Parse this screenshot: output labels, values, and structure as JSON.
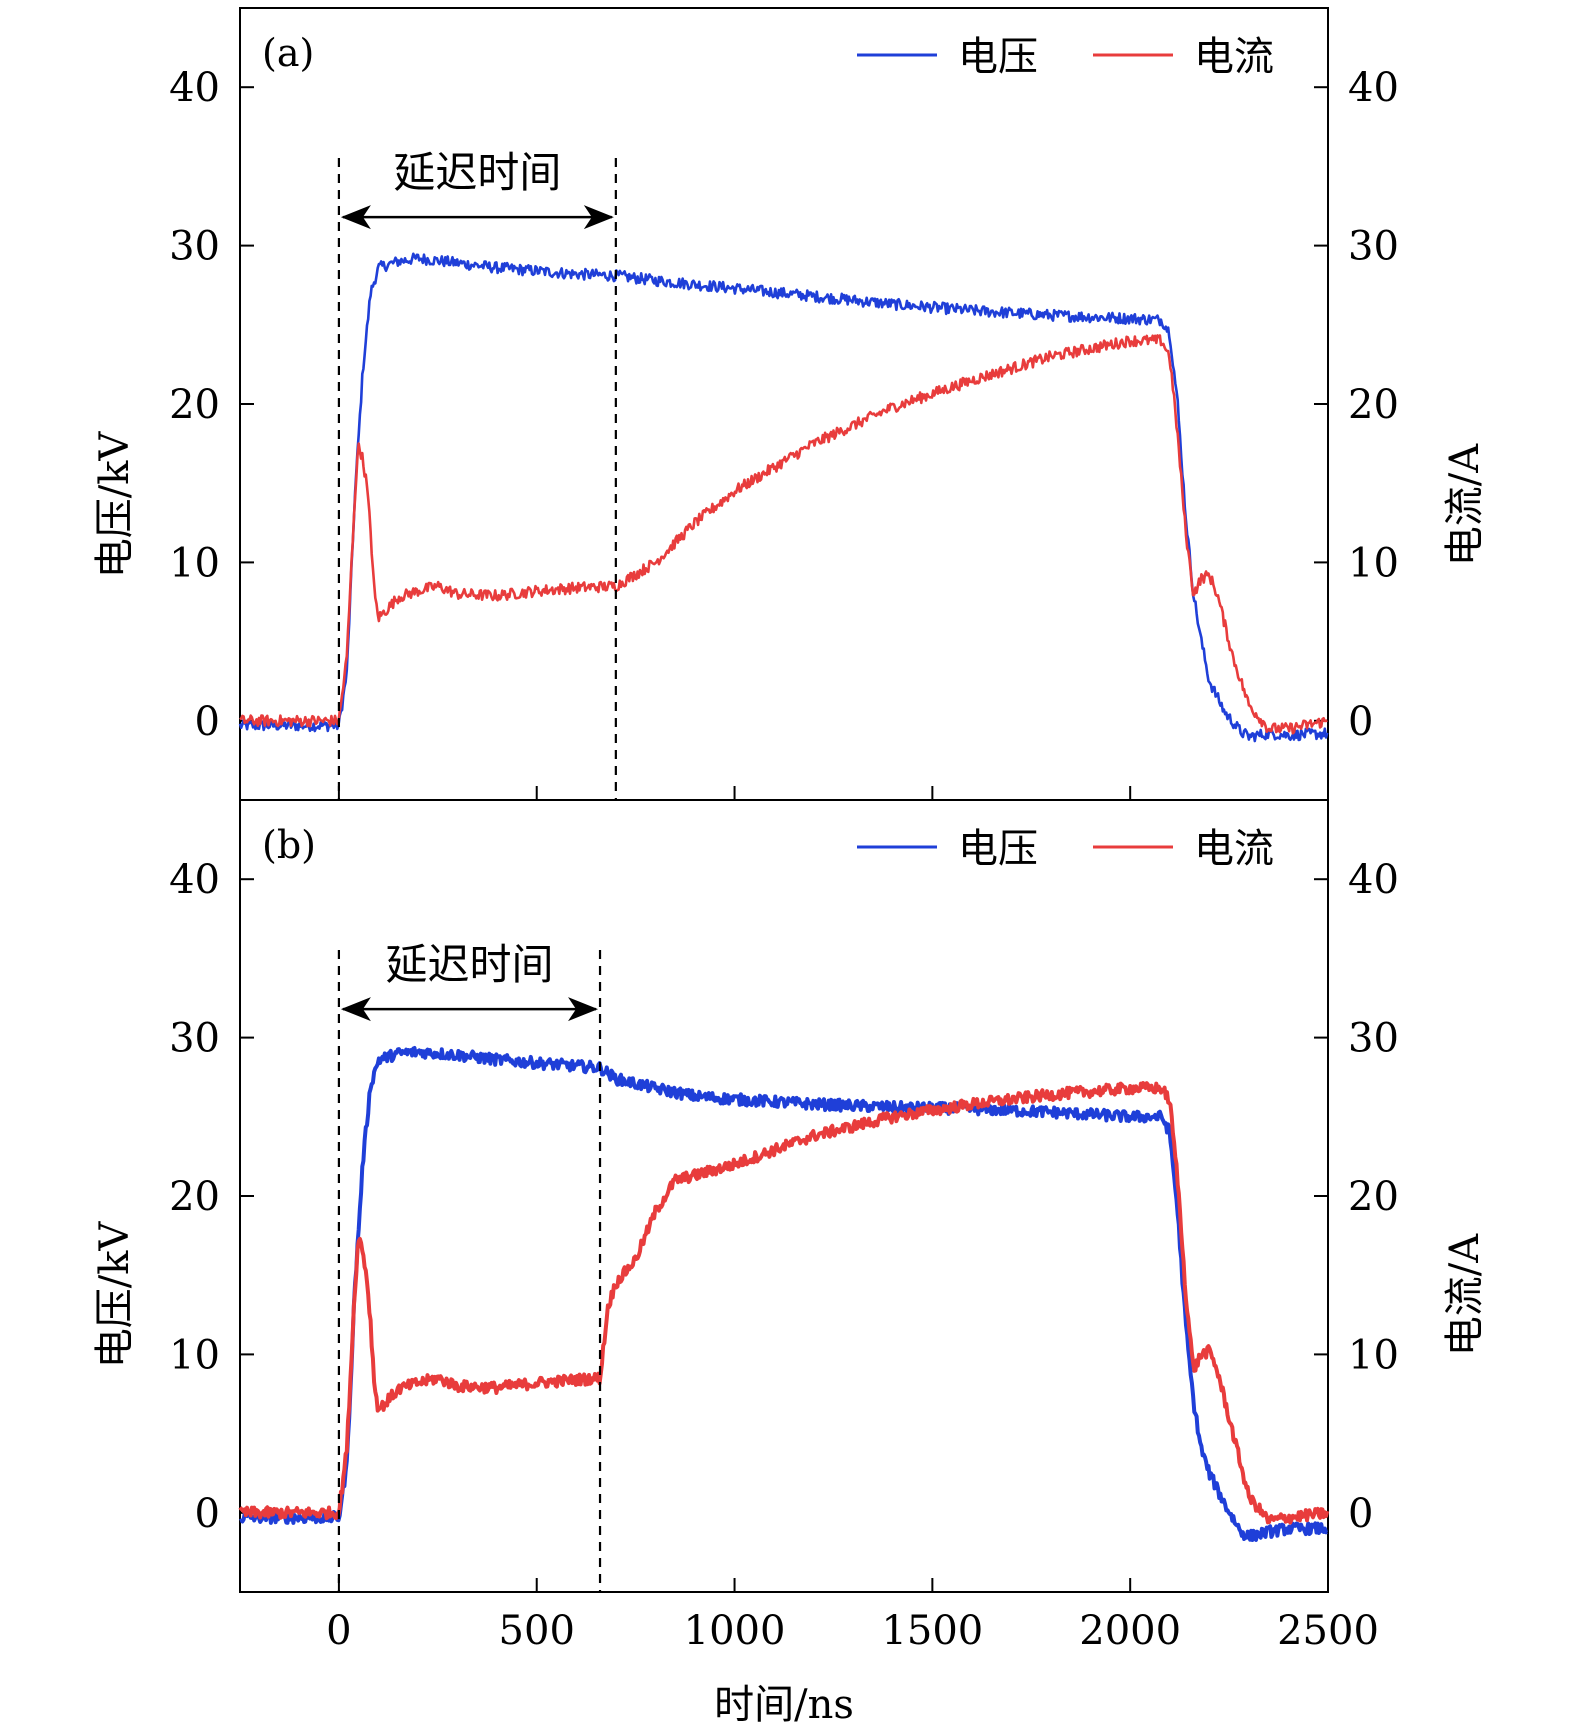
{
  "chart_data": [
    {
      "type": "line",
      "panel_label": "(a)",
      "xlabel": "时间/ns",
      "ylabel_left": "电压/kV",
      "ylabel_right": "电流/A",
      "xlim": [
        -250,
        2500
      ],
      "ylim": [
        -5,
        45
      ],
      "xticks": [
        0,
        500,
        1000,
        1500,
        2000,
        2500
      ],
      "yticks": [
        0,
        10,
        20,
        30,
        40
      ],
      "tick_labels_y": [
        "0",
        "10",
        "20",
        "30",
        "40"
      ],
      "legend_position": "top-right",
      "annotation": {
        "text": "延迟时间",
        "x_start": 0,
        "x_end": 700,
        "arrow_y": 31.8
      },
      "series": [
        {
          "name": "电压",
          "color": "#1f3fd8",
          "axis": "left",
          "x": [
            -250,
            0,
            20,
            40,
            60,
            80,
            100,
            150,
            200,
            300,
            400,
            500,
            600,
            700,
            800,
            1000,
            1200,
            1400,
            1600,
            1800,
            2000,
            2080,
            2100,
            2120,
            2140,
            2160,
            2180,
            2200,
            2240,
            2280,
            2300,
            2350,
            2400,
            2500
          ],
          "y": [
            -0.3,
            -0.3,
            3,
            14,
            22,
            27,
            28.6,
            29,
            29.2,
            28.9,
            28.6,
            28.4,
            28.2,
            28.1,
            27.8,
            27.3,
            26.8,
            26.3,
            25.9,
            25.6,
            25.4,
            25.3,
            24.5,
            20,
            13,
            8,
            5,
            2.5,
            0.5,
            -0.7,
            -1.0,
            -0.8,
            -0.9,
            -0.8
          ]
        },
        {
          "name": "电流",
          "color": "#e83c3c",
          "axis": "right",
          "x": [
            -250,
            0,
            20,
            40,
            50,
            60,
            70,
            80,
            90,
            100,
            120,
            150,
            200,
            250,
            300,
            400,
            500,
            600,
            700,
            800,
            900,
            1000,
            1200,
            1400,
            1600,
            1800,
            2000,
            2080,
            2100,
            2120,
            2140,
            2160,
            2180,
            2200,
            2220,
            2260,
            2300,
            2350,
            2400,
            2500
          ],
          "y": [
            0,
            0,
            4,
            14,
            17.5,
            16.5,
            15,
            12,
            8,
            6.5,
            7,
            7.8,
            8.2,
            8.5,
            8,
            7.9,
            8.2,
            8.4,
            8.5,
            10,
            12.5,
            14.5,
            17.5,
            19.8,
            21.5,
            23,
            24,
            24,
            23,
            18,
            12,
            8,
            9,
            9.2,
            8,
            4,
            1,
            -0.5,
            -0.5,
            0
          ]
        }
      ]
    },
    {
      "type": "line",
      "panel_label": "(b)",
      "xlabel": "时间/ns",
      "ylabel_left": "电压/kV",
      "ylabel_right": "电流/A",
      "xlim": [
        -250,
        2500
      ],
      "ylim": [
        -5,
        45
      ],
      "xticks": [
        0,
        500,
        1000,
        1500,
        2000,
        2500
      ],
      "xtick_labels": [
        "0",
        "500",
        "1000",
        "1500",
        "2000",
        "2500"
      ],
      "yticks": [
        0,
        10,
        20,
        30,
        40
      ],
      "tick_labels_y": [
        "0",
        "10",
        "20",
        "30",
        "40"
      ],
      "legend_position": "top-right",
      "annotation": {
        "text": "延迟时间",
        "x_start": 0,
        "x_end": 660,
        "arrow_y": 31.8
      },
      "series": [
        {
          "name": "电压",
          "color": "#1f3fd8",
          "axis": "left",
          "x": [
            -250,
            0,
            20,
            40,
            60,
            80,
            100,
            150,
            200,
            300,
            400,
            500,
            600,
            660,
            700,
            800,
            900,
            1000,
            1200,
            1400,
            1600,
            1800,
            2000,
            2080,
            2100,
            2120,
            2140,
            2160,
            2180,
            2200,
            2240,
            2280,
            2300,
            2350,
            2400,
            2500
          ],
          "y": [
            -0.3,
            -0.3,
            3,
            14,
            22,
            27,
            28.6,
            29,
            29.1,
            28.9,
            28.6,
            28.4,
            28.2,
            28.1,
            27.4,
            26.8,
            26.3,
            26.1,
            25.8,
            25.6,
            25.5,
            25.3,
            25.0,
            25.0,
            24,
            19,
            12,
            7,
            4,
            2.5,
            0.5,
            -1.2,
            -1.5,
            -1.2,
            -1.0,
            -1.0
          ]
        },
        {
          "name": "电流",
          "color": "#e83c3c",
          "axis": "right",
          "x": [
            -250,
            0,
            20,
            40,
            50,
            60,
            70,
            80,
            90,
            100,
            120,
            150,
            200,
            250,
            300,
            400,
            500,
            600,
            660,
            680,
            700,
            750,
            800,
            850,
            900,
            1000,
            1200,
            1400,
            1600,
            1800,
            2000,
            2080,
            2100,
            2120,
            2140,
            2160,
            2180,
            2200,
            2220,
            2260,
            2300,
            2350,
            2400,
            2500
          ],
          "y": [
            0,
            0,
            4,
            14,
            17.5,
            16.5,
            15,
            12,
            8,
            6.5,
            7,
            7.8,
            8.2,
            8.5,
            8,
            7.9,
            8.2,
            8.4,
            8.5,
            13,
            14.5,
            16,
            19,
            21,
            21.3,
            22,
            23.8,
            25,
            25.8,
            26.4,
            26.8,
            26.8,
            26,
            21,
            14,
            9,
            10,
            10.2,
            9,
            5,
            1,
            -0.5,
            -0.3,
            0
          ]
        }
      ]
    }
  ]
}
